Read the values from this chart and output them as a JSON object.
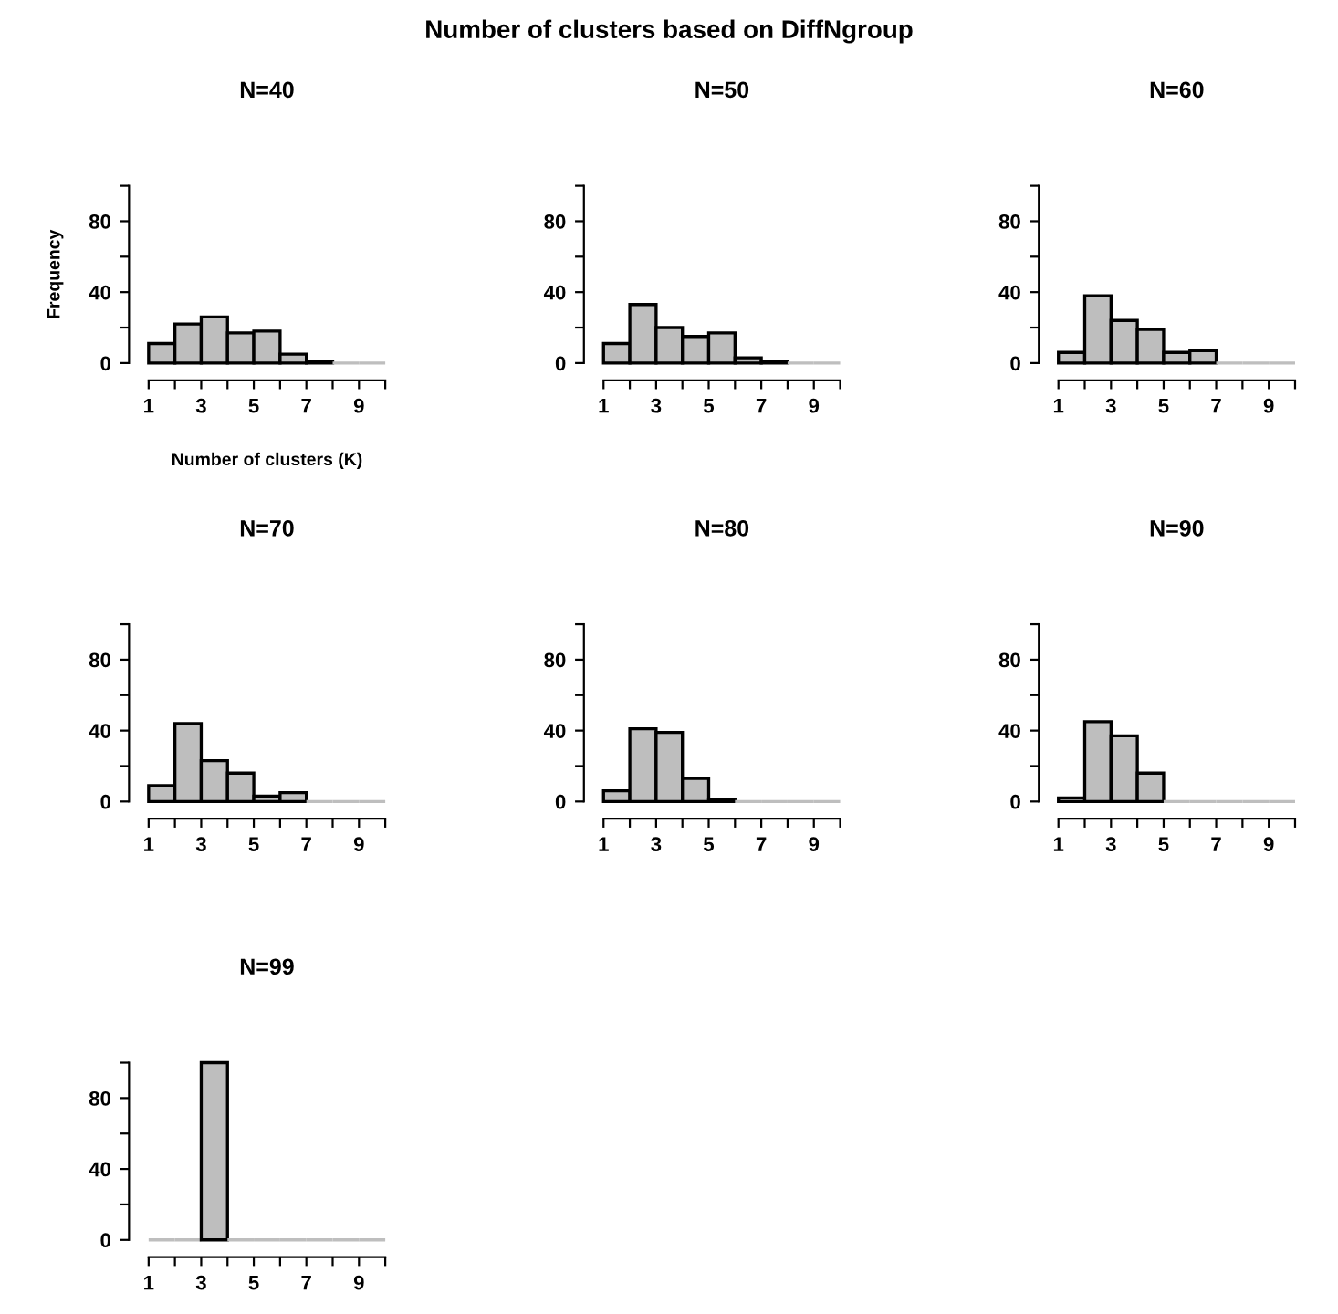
{
  "chart_data": [
    {
      "type": "histogram",
      "title": "N=40",
      "xlabel": "Number of clusters (K)",
      "ylabel": "Frequency",
      "annotations": [
        "Number of clusters based on DiffNgroup"
      ],
      "bins": [
        1,
        2,
        3,
        4,
        5,
        6,
        7,
        8,
        9,
        10
      ],
      "values": [
        11,
        22,
        26,
        17,
        18,
        5,
        1,
        0,
        0
      ],
      "color": "#bebebe",
      "xlim": [
        1,
        10
      ],
      "ylim": [
        0,
        100
      ],
      "xticks": [
        1,
        {
          "value": 2,
          "label": null
        },
        3,
        {
          "value": 4,
          "label": null
        },
        5,
        {
          "value": 6,
          "label": null
        },
        7,
        {
          "value": 8,
          "label": null
        },
        9,
        {
          "value": 10,
          "label": null
        }
      ],
      "yticks": [
        0,
        {
          "value": 20,
          "label": null
        },
        40,
        {
          "value": 60,
          "label": null
        },
        80,
        {
          "value": 100,
          "label": null
        }
      ],
      "grid": false
    },
    {
      "type": "histogram",
      "title": "N=50",
      "bins": [
        1,
        2,
        3,
        4,
        5,
        6,
        7,
        8,
        9,
        10
      ],
      "values": [
        11,
        33,
        20,
        15,
        17,
        3,
        1,
        0,
        0
      ],
      "color": "#bebebe",
      "xlim": [
        1,
        10
      ],
      "ylim": [
        0,
        100
      ],
      "xticks": [
        1,
        {
          "value": 2,
          "label": null
        },
        3,
        {
          "value": 4,
          "label": null
        },
        5,
        {
          "value": 6,
          "label": null
        },
        7,
        {
          "value": 8,
          "label": null
        },
        9,
        {
          "value": 10,
          "label": null
        }
      ],
      "yticks": [
        0,
        {
          "value": 20,
          "label": null
        },
        40,
        {
          "value": 60,
          "label": null
        },
        80,
        {
          "value": 100,
          "label": null
        }
      ],
      "grid": false
    },
    {
      "type": "histogram",
      "title": "N=60",
      "bins": [
        1,
        2,
        3,
        4,
        5,
        6,
        7,
        8,
        9,
        10
      ],
      "values": [
        6,
        38,
        24,
        19,
        6,
        7,
        0,
        0,
        0
      ],
      "color": "#bebebe",
      "xlim": [
        1,
        10
      ],
      "ylim": [
        0,
        100
      ],
      "xticks": [
        1,
        {
          "value": 2,
          "label": null
        },
        3,
        {
          "value": 4,
          "label": null
        },
        5,
        {
          "value": 6,
          "label": null
        },
        7,
        {
          "value": 8,
          "label": null
        },
        9,
        {
          "value": 10,
          "label": null
        }
      ],
      "yticks": [
        0,
        {
          "value": 20,
          "label": null
        },
        40,
        {
          "value": 60,
          "label": null
        },
        80,
        {
          "value": 100,
          "label": null
        }
      ],
      "grid": false
    },
    {
      "type": "histogram",
      "title": "N=70",
      "bins": [
        1,
        2,
        3,
        4,
        5,
        6,
        7,
        8,
        9,
        10
      ],
      "values": [
        9,
        44,
        23,
        16,
        3,
        5,
        0,
        0,
        0
      ],
      "color": "#bebebe",
      "xlim": [
        1,
        10
      ],
      "ylim": [
        0,
        100
      ],
      "xticks": [
        1,
        {
          "value": 2,
          "label": null
        },
        3,
        {
          "value": 4,
          "label": null
        },
        5,
        {
          "value": 6,
          "label": null
        },
        7,
        {
          "value": 8,
          "label": null
        },
        9,
        {
          "value": 10,
          "label": null
        }
      ],
      "yticks": [
        0,
        {
          "value": 20,
          "label": null
        },
        40,
        {
          "value": 60,
          "label": null
        },
        80,
        {
          "value": 100,
          "label": null
        }
      ],
      "grid": false
    },
    {
      "type": "histogram",
      "title": "N=80",
      "bins": [
        1,
        2,
        3,
        4,
        5,
        6,
        7,
        8,
        9,
        10
      ],
      "values": [
        6,
        41,
        39,
        13,
        1,
        0,
        0,
        0,
        0
      ],
      "color": "#bebebe",
      "xlim": [
        1,
        10
      ],
      "ylim": [
        0,
        100
      ],
      "xticks": [
        1,
        {
          "value": 2,
          "label": null
        },
        3,
        {
          "value": 4,
          "label": null
        },
        5,
        {
          "value": 6,
          "label": null
        },
        7,
        {
          "value": 8,
          "label": null
        },
        9,
        {
          "value": 10,
          "label": null
        }
      ],
      "yticks": [
        0,
        {
          "value": 20,
          "label": null
        },
        40,
        {
          "value": 60,
          "label": null
        },
        80,
        {
          "value": 100,
          "label": null
        }
      ],
      "grid": false
    },
    {
      "type": "histogram",
      "title": "N=90",
      "bins": [
        1,
        2,
        3,
        4,
        5,
        6,
        7,
        8,
        9,
        10
      ],
      "values": [
        2,
        45,
        37,
        16,
        0,
        0,
        0,
        0,
        0
      ],
      "color": "#bebebe",
      "xlim": [
        1,
        10
      ],
      "ylim": [
        0,
        100
      ],
      "xticks": [
        1,
        {
          "value": 2,
          "label": null
        },
        3,
        {
          "value": 4,
          "label": null
        },
        5,
        {
          "value": 6,
          "label": null
        },
        7,
        {
          "value": 8,
          "label": null
        },
        9,
        {
          "value": 10,
          "label": null
        }
      ],
      "yticks": [
        0,
        {
          "value": 20,
          "label": null
        },
        40,
        {
          "value": 60,
          "label": null
        },
        80,
        {
          "value": 100,
          "label": null
        }
      ],
      "grid": false
    },
    {
      "type": "histogram",
      "title": "N=99",
      "bins": [
        1,
        2,
        3,
        4,
        5,
        6,
        7,
        8,
        9,
        10
      ],
      "values": [
        0,
        0,
        100,
        0,
        0,
        0,
        0,
        0,
        0
      ],
      "color": "#bebebe",
      "xlim": [
        1,
        10
      ],
      "ylim": [
        0,
        100
      ],
      "xticks": [
        1,
        {
          "value": 2,
          "label": null
        },
        3,
        {
          "value": 4,
          "label": null
        },
        5,
        {
          "value": 6,
          "label": null
        },
        7,
        {
          "value": 8,
          "label": null
        },
        9,
        {
          "value": 10,
          "label": null
        }
      ],
      "yticks": [
        0,
        {
          "value": 20,
          "label": null
        },
        40,
        {
          "value": 60,
          "label": null
        },
        80,
        {
          "value": 100,
          "label": null
        }
      ],
      "grid": false
    }
  ]
}
